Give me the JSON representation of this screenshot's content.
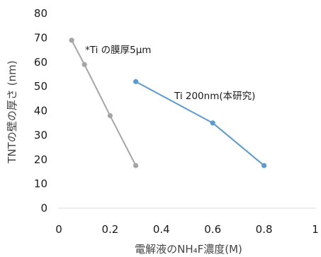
{
  "chart_data": {
    "type": "scatter",
    "xlim": [
      0,
      1
    ],
    "ylim": [
      0,
      80
    ],
    "x_ticks": [
      0,
      0.2,
      0.4,
      0.6,
      0.8,
      1
    ],
    "x_tick_labels": [
      "0",
      "0.2",
      "0.4",
      "0.6",
      "0.8",
      "1"
    ],
    "y_ticks": [
      0,
      10,
      20,
      30,
      40,
      50,
      60,
      70,
      80
    ],
    "y_tick_labels": [
      "0",
      "10",
      "20",
      "30",
      "40",
      "50",
      "60",
      "70",
      "80"
    ],
    "xlabel": "電解液のNH₄F濃度(M)",
    "ylabel": "TNTの壁の厚さ (nm)",
    "grid": false,
    "legend": "none",
    "series": [
      {
        "label": "*Ti の膜厚5μm",
        "color": "#a5a5a5",
        "x": [
          0.05,
          0.1,
          0.2,
          0.3
        ],
        "y": [
          69,
          59,
          38,
          17.5
        ]
      },
      {
        "label": "Ti 200nm(本研究)",
        "color": "#5b9bd5",
        "x": [
          0.3,
          0.6,
          0.8
        ],
        "y": [
          52,
          35,
          17.5
        ]
      }
    ]
  }
}
